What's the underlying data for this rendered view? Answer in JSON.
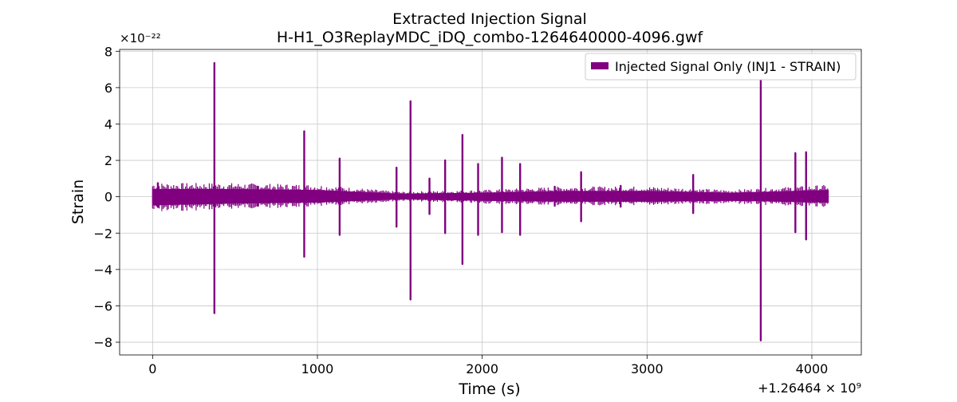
{
  "chart_data": {
    "type": "line",
    "title": "Extracted Injection Signal",
    "subtitle": "H-H1_O3ReplayMDC_iDQ_combo-1264640000-4096.gwf",
    "xlabel": "Time (s)",
    "ylabel": "Strain",
    "y_multiplier_label": "×10⁻²²",
    "x_offset_label": "+1.26464 × 10⁹",
    "xlim": [
      -200,
      4300
    ],
    "ylim": [
      -8.7,
      8.1
    ],
    "x_ticks": [
      0,
      1000,
      2000,
      3000,
      4000
    ],
    "x_tick_labels": [
      "0",
      "1000",
      "2000",
      "3000",
      "4000"
    ],
    "y_ticks": [
      -8,
      -6,
      -4,
      -2,
      0,
      2,
      4,
      6,
      8
    ],
    "y_tick_labels": [
      "−8",
      "−6",
      "−4",
      "−2",
      "0",
      "2",
      "4",
      "6",
      "8"
    ],
    "grid": true,
    "legend_position": "top-right",
    "series": [
      {
        "name": "Injected Signal Only (INJ1 - STRAIN)",
        "color": "#800080",
        "baseline_band": [
          {
            "x": 0,
            "lo": -0.45,
            "hi": 0.4
          },
          {
            "x": 500,
            "lo": -0.35,
            "hi": 0.4
          },
          {
            "x": 1000,
            "lo": -0.3,
            "hi": 0.35
          },
          {
            "x": 1500,
            "lo": -0.12,
            "hi": 0.15
          },
          {
            "x": 2000,
            "lo": -0.2,
            "hi": 0.2
          },
          {
            "x": 2500,
            "lo": -0.25,
            "hi": 0.3
          },
          {
            "x": 3000,
            "lo": -0.25,
            "hi": 0.3
          },
          {
            "x": 3500,
            "lo": -0.2,
            "hi": 0.2
          },
          {
            "x": 4100,
            "lo": -0.3,
            "hi": 0.35
          }
        ],
        "spikes": [
          {
            "x": 32,
            "max": 0.75,
            "min": -0.55
          },
          {
            "x": 375,
            "max": 7.35,
            "min": -6.4
          },
          {
            "x": 640,
            "max": 0.55,
            "min": -0.5
          },
          {
            "x": 920,
            "max": 3.6,
            "min": -3.3
          },
          {
            "x": 1135,
            "max": 2.1,
            "min": -2.1
          },
          {
            "x": 1480,
            "max": 1.6,
            "min": -1.65
          },
          {
            "x": 1565,
            "max": 5.25,
            "min": -5.65
          },
          {
            "x": 1680,
            "max": 1.0,
            "min": -0.95
          },
          {
            "x": 1775,
            "max": 2.0,
            "min": -2.0
          },
          {
            "x": 1880,
            "max": 3.4,
            "min": -3.7
          },
          {
            "x": 1975,
            "max": 1.8,
            "min": -2.1
          },
          {
            "x": 2120,
            "max": 2.15,
            "min": -1.95
          },
          {
            "x": 2230,
            "max": 1.8,
            "min": -2.1
          },
          {
            "x": 2440,
            "max": 0.55,
            "min": -0.5
          },
          {
            "x": 2600,
            "max": 1.35,
            "min": -1.35
          },
          {
            "x": 2840,
            "max": 0.6,
            "min": -0.55
          },
          {
            "x": 3280,
            "max": 1.2,
            "min": -0.9
          },
          {
            "x": 3690,
            "max": 6.4,
            "min": -7.9
          },
          {
            "x": 3900,
            "max": 2.4,
            "min": -1.95
          },
          {
            "x": 3965,
            "max": 2.45,
            "min": -2.35
          }
        ]
      }
    ]
  }
}
